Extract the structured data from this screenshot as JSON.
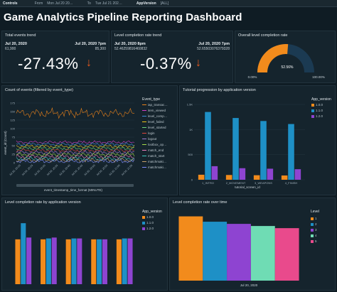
{
  "controls": {
    "label": "Controls",
    "from_label": "From",
    "from_value": "Mon Jul 20 20…",
    "to_label": "To",
    "to_value": "Tue Jul 21 202…",
    "appversion_label": "AppVersion",
    "appversion_value": "[ALL]"
  },
  "dashboard_title": "Game Analytics Pipeline Reporting Dashboard",
  "kpi_total": {
    "title": "Total events trend",
    "date_left": "Jul 20, 2020",
    "value_left": "61,900",
    "date_right": "Jul 20, 2020 7pm",
    "value_right": "85,300",
    "change": "-27.43%",
    "arrow": "↓"
  },
  "kpi_level": {
    "title": "Level completion rate trend",
    "date_left": "Jul 20, 2020 8pm",
    "value_left": "52.46259816460832",
    "date_right": "Jul 20, 2020 7pm",
    "value_right": "52.65503076379328",
    "change": "-0.37%",
    "arrow": "↓"
  },
  "gauge": {
    "title": "Overall level completion rate",
    "min": "0.00%",
    "max": "100.00%",
    "value_label": "52.56%",
    "value": 0.5256
  },
  "events_chart": {
    "title": "Count of events (filtered by event_type)",
    "ylabel": "event_id (Count)",
    "xlabel": "event_timestamp_time_format (MINUTE)",
    "y_ticks": [
      "0",
      "25",
      "50",
      "75",
      "100",
      "125",
      "150",
      "175"
    ],
    "x_ticks": [
      "Jul 20, 20:20",
      "Jul 20, 20:25",
      "Jul 20, 20:30",
      "Jul 20, 20:35",
      "Jul 20, 20:40",
      "Jul 20, 20:45",
      "Jul 20, 20:50",
      "Jul 20, 20:55",
      "Jul 20, 21:00",
      "Jul 20, 21:05"
    ],
    "legend_title": "Event_type",
    "legend": [
      "iap_transac…",
      "item_viewed",
      "level_comp…",
      "level_failed",
      "level_started",
      "login",
      "logout",
      "lootbox_op…",
      "match_end",
      "match_start",
      "matchmaki…",
      "matchmaki…"
    ],
    "colors": [
      "#e8811a",
      "#d23fc8",
      "#3d8fd6",
      "#f0c419",
      "#6bd67e",
      "#e2463d",
      "#9b7bd3",
      "#a3d94a",
      "#ef7fc0",
      "#3ec7c0",
      "#c9a16a",
      "#7f8cff"
    ],
    "levels": [
      145,
      60,
      54,
      48,
      42,
      36,
      30,
      24,
      18,
      12,
      8,
      4
    ]
  },
  "tutorial_chart": {
    "title": "Tutorial progression by application version",
    "xlabel": "tutorial_screen_id",
    "y_ticks": [
      "0",
      "500",
      "1K",
      "1.5K"
    ],
    "legend_title": "App_version",
    "colors": [
      "#f28b1c",
      "#1e90c6",
      "#8e44d1"
    ],
    "chart_data": {
      "type": "bar",
      "categories": [
        "1_INTRO",
        "2_MOVEMENT",
        "3_WEAPONS",
        "4_FINISH"
      ],
      "series": [
        {
          "name": "1.0.0",
          "values": [
            100,
            95,
            90,
            85
          ]
        },
        {
          "name": "1.1.0",
          "values": [
            1350,
            1230,
            1170,
            1110
          ]
        },
        {
          "name": "1.2.0",
          "values": [
            270,
            230,
            220,
            210
          ]
        }
      ],
      "ylim": [
        0,
        1500
      ]
    }
  },
  "level_by_version": {
    "title": "Level completion rate by application version",
    "legend_title": "App_version",
    "colors": [
      "#f28b1c",
      "#1e90c6",
      "#8e44d1"
    ],
    "chart_data": {
      "type": "bar",
      "categories": [
        "1",
        "2",
        "3",
        "4",
        "5"
      ],
      "series": [
        {
          "name": "1.0.0",
          "values": [
            50,
            50,
            50,
            50,
            50
          ]
        },
        {
          "name": "1.1.0",
          "values": [
            68,
            51,
            51,
            50,
            51
          ]
        },
        {
          "name": "1.2.0",
          "values": [
            52,
            52,
            51,
            50,
            51
          ]
        }
      ],
      "ylim": [
        0,
        80
      ]
    }
  },
  "level_over_time": {
    "title": "Level completion rate over time",
    "legend_title": "Level",
    "xlabel": "Jul 20, 2020",
    "colors": [
      "#f28b1c",
      "#1e90c6",
      "#8e44d1",
      "#6fdcb4",
      "#e94a8c"
    ],
    "chart_data": {
      "type": "bar",
      "categories": [
        "Jul 20, 2020"
      ],
      "series": [
        {
          "name": "1",
          "values": [
            60
          ]
        },
        {
          "name": "2",
          "values": [
            55
          ]
        },
        {
          "name": "3",
          "values": [
            53
          ]
        },
        {
          "name": "4",
          "values": [
            51
          ]
        },
        {
          "name": "5",
          "values": [
            49
          ]
        }
      ],
      "ylim": [
        0,
        65
      ]
    }
  }
}
